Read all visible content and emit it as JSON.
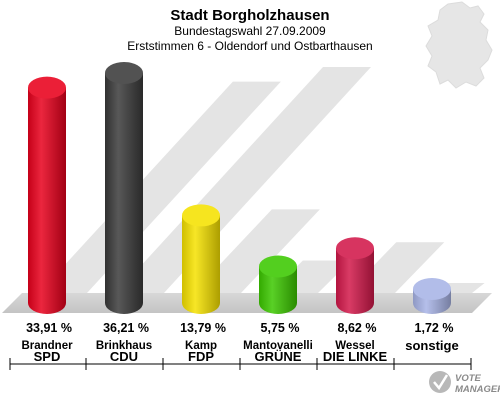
{
  "header": {
    "title": "Stadt Borgholzhausen",
    "subtitle1": "Bundestagswahl 27.09.2009",
    "subtitle2": "Erststimmen 6 - Oldendorf und Ostbarthausen"
  },
  "logo": {
    "line1": "VOTE",
    "line2": "MANAGER"
  },
  "chart_data": {
    "type": "bar",
    "title": "Stadt Borgholzhausen",
    "subtitle": "Bundestagswahl 27.09.2009 / Erststimmen 6 - Oldendorf und Ostbarthausen",
    "categories": [
      "SPD",
      "CDU",
      "FDP",
      "GRÜNE",
      "DIE LINKE",
      "sonstige"
    ],
    "candidates": [
      "Brandner",
      "Brinkhaus",
      "Kamp",
      "Mantovanelli",
      "Wessel",
      ""
    ],
    "values": [
      33.91,
      36.21,
      13.79,
      5.75,
      8.62,
      1.72
    ],
    "value_labels": [
      "33,91 %",
      "36,21 %",
      "13,79 %",
      "5,75 %",
      "8,62 %",
      "1,72 %"
    ],
    "colors": [
      "#e8001c",
      "#3a3a3a",
      "#f5e100",
      "#3cc800",
      "#d2184a",
      "#a8b4e6"
    ],
    "ylim": [
      0,
      36.21
    ]
  }
}
